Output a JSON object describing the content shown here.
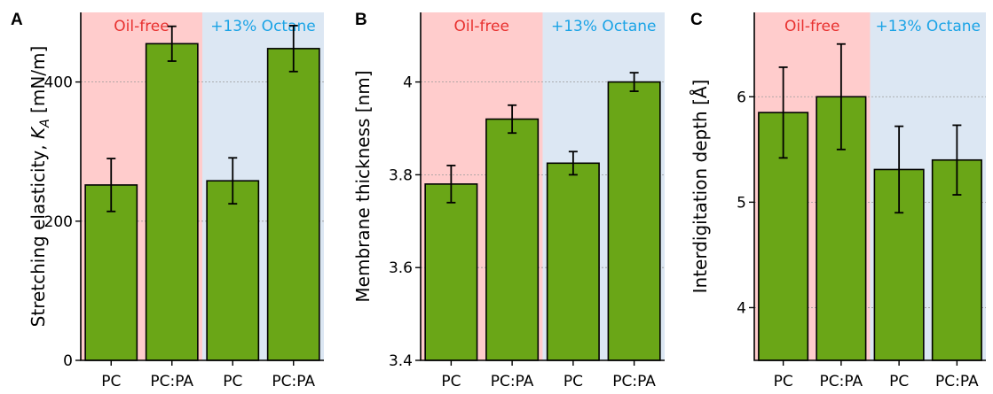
{
  "colors": {
    "bar_fill": "#6aa617",
    "oil_free_bg": "#ffcccc",
    "octane_bg": "#dce7f3",
    "oil_free_text": "#e8312f",
    "octane_text": "#1aa3e6"
  },
  "chart_data": [
    {
      "type": "bar",
      "panel": "A",
      "categories": [
        "PC",
        "PC:PA",
        "PC",
        "PC:PA"
      ],
      "values": [
        252,
        455,
        258,
        448
      ],
      "errors": [
        38,
        25,
        33,
        33
      ],
      "ylabel_main": "Stretching elasticity, ",
      "ylabel_sym": "K",
      "ylabel_sub": "A",
      "ylabel_unit": " [mN/m]",
      "ylim": [
        0,
        500
      ],
      "yticks": [
        0,
        200,
        400
      ],
      "ytick_labels": [
        "0",
        "200",
        "400"
      ],
      "grid": true,
      "regions": [
        {
          "label": "Oil-free",
          "from": 0,
          "to": 2,
          "kind": "oil"
        },
        {
          "label": "+13% Octane",
          "from": 2,
          "to": 4,
          "kind": "octane"
        }
      ]
    },
    {
      "type": "bar",
      "panel": "B",
      "categories": [
        "PC",
        "PC:PA",
        "PC",
        "PC:PA"
      ],
      "values": [
        3.78,
        3.92,
        3.825,
        4.0
      ],
      "errors": [
        0.04,
        0.03,
        0.025,
        0.02
      ],
      "ylabel": "Membrane thickness [nm]",
      "ylim": [
        3.4,
        4.15
      ],
      "yticks": [
        3.4,
        3.6,
        3.8,
        4.0
      ],
      "ytick_labels": [
        "3.4",
        "3.6",
        "3.8",
        "4"
      ],
      "grid": true,
      "regions": [
        {
          "label": "Oil-free",
          "from": 0,
          "to": 2,
          "kind": "oil"
        },
        {
          "label": "+13% Octane",
          "from": 2,
          "to": 4,
          "kind": "octane"
        }
      ]
    },
    {
      "type": "bar",
      "panel": "C",
      "categories": [
        "PC",
        "PC:PA",
        "PC",
        "PC:PA"
      ],
      "values": [
        5.85,
        6.0,
        5.31,
        5.4
      ],
      "errors": [
        0.43,
        0.5,
        0.41,
        0.33
      ],
      "ylabel": "Interdigitation depth [Å]",
      "ylim": [
        3.5,
        6.8
      ],
      "yticks": [
        4,
        5,
        6
      ],
      "ytick_labels": [
        "4",
        "5",
        "6"
      ],
      "grid": true,
      "regions": [
        {
          "label": "Oil-free",
          "from": 0,
          "to": 2,
          "kind": "oil"
        },
        {
          "label": "+13% Octane",
          "from": 2,
          "to": 4,
          "kind": "octane"
        }
      ]
    }
  ]
}
